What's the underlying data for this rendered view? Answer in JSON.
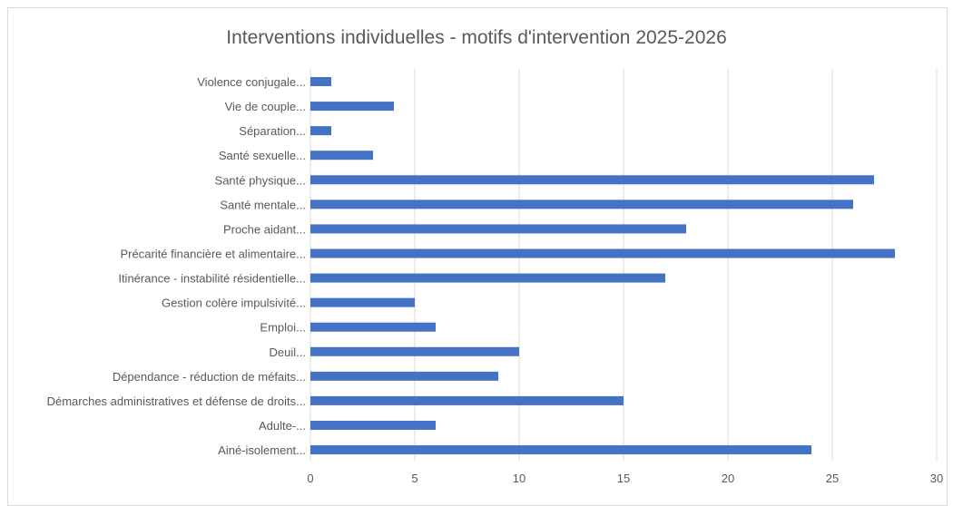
{
  "chart_data": {
    "type": "bar",
    "orientation": "horizontal",
    "title": "Interventions individuelles - motifs d'intervention 2025-2026",
    "xlabel": "",
    "ylabel": "",
    "xlim": [
      0,
      30
    ],
    "x_ticks": [
      "0",
      "5",
      "10",
      "15",
      "20",
      "25",
      "30"
    ],
    "grid": "vertical",
    "legend": "none",
    "bar_color": "#4472c4",
    "categories": [
      "Violence conjugale...",
      "Vie de couple...",
      "Séparation...",
      "Santé sexuelle...",
      "Santé physique...",
      "Santé mentale...",
      "Proche aidant...",
      "Précarité financière et alimentaire...",
      "Itinérance - instabilité résidentielle...",
      "Gestion colère impulsivité...",
      "Emploi...",
      "Deuil...",
      "Dépendance - réduction de méfaits...",
      "Démarches administratives et défense de droits...",
      "Adulte-...",
      "Ainé-isolement..."
    ],
    "values": [
      1,
      4,
      1,
      3,
      27,
      26,
      18,
      28,
      17,
      5,
      6,
      10,
      9,
      15,
      6,
      24
    ]
  }
}
